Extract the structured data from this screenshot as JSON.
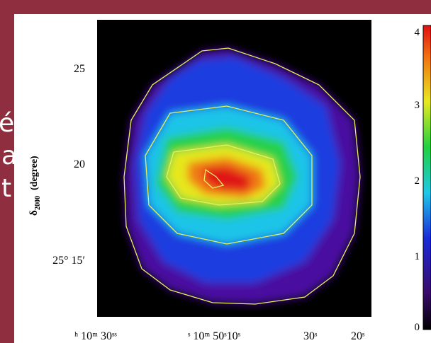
{
  "slide": {
    "fragments": [
      "é",
      "a",
      "t"
    ]
  },
  "figure": {
    "y_axis_label": {
      "symbol": "δ",
      "subscript": "2000",
      "unit": "(degree)"
    },
    "y_tick_labels": [
      "25",
      "20",
      "25° 15′"
    ],
    "x_tick_labels": [
      "ʰ 10ᵐ 30ˢˢ",
      "ˢ 10ᵐ 50ˢ10ˢ",
      "30ˢ",
      "20ˢ"
    ],
    "colorbar_tick_labels": [
      "4",
      "3",
      "2",
      "1",
      "0"
    ]
  }
}
